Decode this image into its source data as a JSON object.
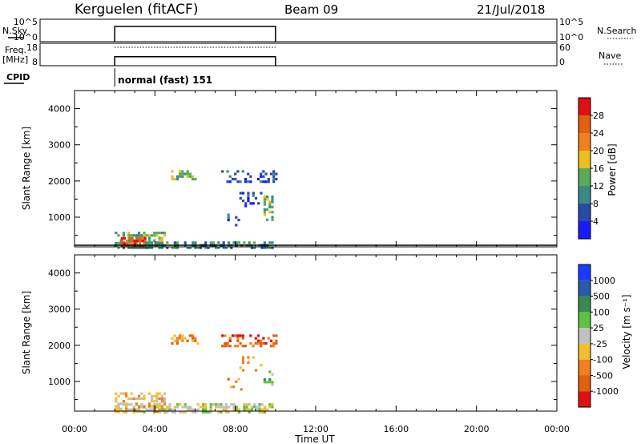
{
  "header": {
    "station": "Kerguelen (fitACF)",
    "beam": "Beam 09",
    "date": "21/Jul/2018"
  },
  "panels": {
    "nsky": {
      "label": "N.Sky",
      "left_top": "10^5",
      "left_bottom": "10^0",
      "right_top": "10^5",
      "right_bottom": "10^0",
      "right_label": "N.Search"
    },
    "freq": {
      "label_top": "Freq.",
      "label_bottom": "[MHz]",
      "left_top": "18",
      "left_bottom": "8",
      "right_top": "60",
      "right_bottom": "0",
      "right_label": "Nave"
    },
    "cpid": {
      "label": "CPID",
      "mode": "normal (fast) 151"
    }
  },
  "colorbars": {
    "power": {
      "label": "Power [dB]",
      "ticks": [
        "4",
        "8",
        "12",
        "16",
        "20",
        "24",
        "28"
      ],
      "colors": [
        "#1a1aff",
        "#2a4aa8",
        "#3a8a8a",
        "#5aaa5a",
        "#e8c020",
        "#f08020",
        "#e06010",
        "#e01010"
      ]
    },
    "velocity": {
      "label": "Velocity [m s⁻¹]",
      "ticks": [
        "1000",
        "500",
        "100",
        "25",
        "-25",
        "-100",
        "-500",
        "-1000"
      ],
      "colors": [
        "#1a3aff",
        "#2a5aa8",
        "#3a8a50",
        "#60c040",
        "#c0c0c0",
        "#f0c030",
        "#f08020",
        "#e06010",
        "#e01010"
      ]
    }
  },
  "xaxis": {
    "label": "Time UT",
    "ticks": [
      "00:00",
      "04:00",
      "08:00",
      "12:00",
      "16:00",
      "20:00",
      "00:00"
    ]
  },
  "chart_data": [
    {
      "type": "heatmap",
      "name_hint": "power",
      "ylabel": "Slant Range [km]",
      "xlim": [
        0,
        24
      ],
      "ylim": [
        180,
        4500
      ],
      "yticks": [
        1000,
        2000,
        3000,
        4000
      ],
      "x_unit": "hours UT",
      "patches": [
        {
          "x": [
            2.0,
            10.0
          ],
          "y": [
            180,
            330
          ],
          "color_level": 2,
          "density": 0.55
        },
        {
          "x": [
            2.0,
            4.5
          ],
          "y": [
            180,
            600
          ],
          "color_level": 3,
          "density": 0.5
        },
        {
          "x": [
            2.3,
            3.5
          ],
          "y": [
            200,
            450
          ],
          "color_level": 6,
          "density": 0.7
        },
        {
          "x": [
            4.8,
            6.2
          ],
          "y": [
            2050,
            2300
          ],
          "color_level": 3,
          "density": 0.6
        },
        {
          "x": [
            7.3,
            10.0
          ],
          "y": [
            2000,
            2300
          ],
          "color_level": 1,
          "density": 0.35
        },
        {
          "x": [
            8.2,
            9.3
          ],
          "y": [
            1300,
            1700
          ],
          "color_level": 1,
          "density": 0.25
        },
        {
          "x": [
            9.4,
            9.9
          ],
          "y": [
            900,
            1600
          ],
          "color_level": 3,
          "density": 0.45
        },
        {
          "x": [
            7.6,
            8.3
          ],
          "y": [
            800,
            1100
          ],
          "color_level": 1,
          "density": 0.25
        }
      ]
    },
    {
      "type": "heatmap",
      "name_hint": "velocity",
      "ylabel": "Slant Range [km]",
      "xlim": [
        0,
        24
      ],
      "ylim": [
        180,
        4500
      ],
      "yticks": [
        1000,
        2000,
        3000,
        4000
      ],
      "x_unit": "hours UT",
      "patches": [
        {
          "x": [
            2.0,
            10.0
          ],
          "y": [
            180,
            400
          ],
          "color_level": 4,
          "density": 0.55
        },
        {
          "x": [
            2.0,
            4.5
          ],
          "y": [
            180,
            700
          ],
          "color_level": 5,
          "density": 0.4
        },
        {
          "x": [
            4.8,
            6.2
          ],
          "y": [
            2050,
            2300
          ],
          "color_level": 6,
          "density": 0.6
        },
        {
          "x": [
            7.3,
            10.0
          ],
          "y": [
            2000,
            2300
          ],
          "color_level": 7,
          "density": 0.35
        },
        {
          "x": [
            8.2,
            9.3
          ],
          "y": [
            1300,
            1700
          ],
          "color_level": 6,
          "density": 0.25
        },
        {
          "x": [
            9.4,
            9.9
          ],
          "y": [
            900,
            1300
          ],
          "color_level": 3,
          "density": 0.5
        },
        {
          "x": [
            7.6,
            8.3
          ],
          "y": [
            800,
            1100
          ],
          "color_level": 6,
          "density": 0.25
        }
      ]
    }
  ],
  "nsky_series": {
    "x": [
      2.0,
      10.0
    ],
    "level": "10^5"
  },
  "freq_series": {
    "x": [
      2.0,
      10.0
    ],
    "freq_mhz": 12,
    "nave": 45
  }
}
